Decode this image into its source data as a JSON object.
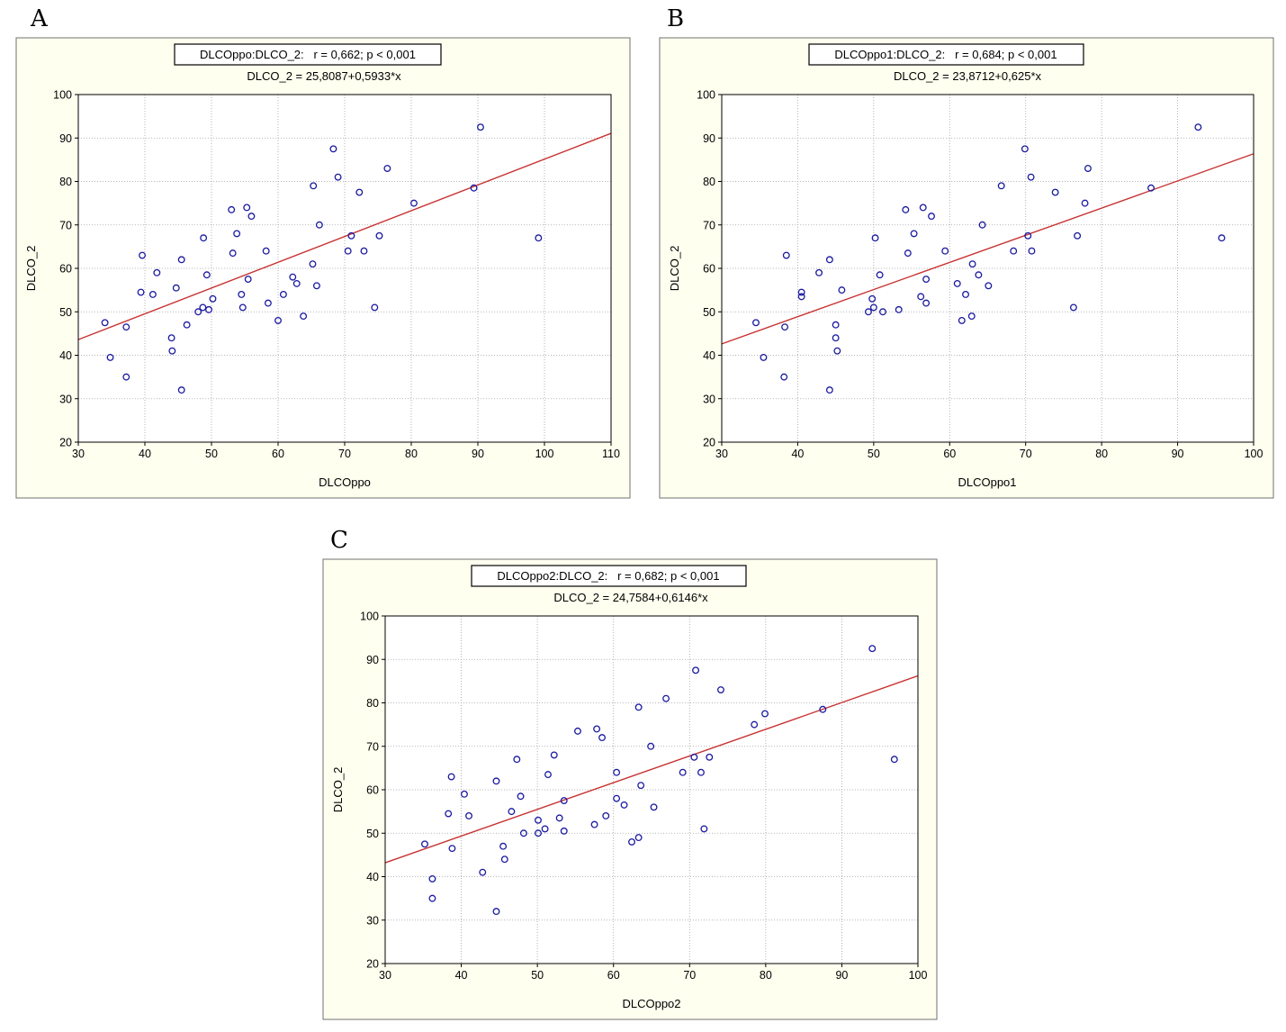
{
  "colors": {
    "panel_bg": "#ffffef",
    "point": "#1a1aa0",
    "fit_line": "#c83232",
    "grid": "#a0a0a0"
  },
  "chart_data": [
    {
      "type": "scatter",
      "panel_label": "A",
      "stat_box": "DLCOppo:DLCO_2:   r = 0,662; p < 0,001",
      "equation": "DLCO_2 = 25,8087+0,5933*x",
      "xlabel": "DLCOppo",
      "ylabel": "DLCO_2",
      "xlim": [
        30,
        110
      ],
      "ylim": [
        20,
        100
      ],
      "xticks": [
        30,
        40,
        50,
        60,
        70,
        80,
        90,
        100,
        110
      ],
      "yticks": [
        20,
        30,
        40,
        50,
        60,
        70,
        80,
        90,
        100
      ],
      "grid": true,
      "fit": {
        "intercept": 25.8087,
        "slope": 0.5933
      },
      "points": [
        [
          34,
          47.5
        ],
        [
          34.8,
          39.5
        ],
        [
          37.2,
          46.5
        ],
        [
          37.2,
          35
        ],
        [
          39.4,
          54.5
        ],
        [
          39.6,
          63
        ],
        [
          41.2,
          54
        ],
        [
          41.8,
          59
        ],
        [
          44,
          44
        ],
        [
          44.1,
          41
        ],
        [
          44.7,
          55.5
        ],
        [
          45.5,
          62
        ],
        [
          45.5,
          32
        ],
        [
          46.3,
          47
        ],
        [
          48,
          50
        ],
        [
          48.7,
          51
        ],
        [
          48.8,
          67
        ],
        [
          49.3,
          58.5
        ],
        [
          49.6,
          50.5
        ],
        [
          50.2,
          53
        ],
        [
          53,
          73.5
        ],
        [
          53.2,
          63.5
        ],
        [
          53.8,
          68
        ],
        [
          54.5,
          54
        ],
        [
          54.7,
          51
        ],
        [
          55.3,
          74
        ],
        [
          55.5,
          57.5
        ],
        [
          56,
          72
        ],
        [
          58.2,
          64
        ],
        [
          58.5,
          52
        ],
        [
          60,
          48
        ],
        [
          60.8,
          54
        ],
        [
          62.2,
          58
        ],
        [
          62.8,
          56.5
        ],
        [
          63.8,
          49
        ],
        [
          65.2,
          61
        ],
        [
          65.3,
          79
        ],
        [
          65.8,
          56
        ],
        [
          66.2,
          70
        ],
        [
          68.3,
          87.5
        ],
        [
          69,
          81
        ],
        [
          70.5,
          64
        ],
        [
          71,
          67.5
        ],
        [
          72.2,
          77.5
        ],
        [
          72.9,
          64
        ],
        [
          74.5,
          51
        ],
        [
          75.2,
          67.5
        ],
        [
          76.4,
          83
        ],
        [
          80.4,
          75
        ],
        [
          89.4,
          78.5
        ],
        [
          90.4,
          92.5
        ],
        [
          99.1,
          67
        ]
      ]
    },
    {
      "type": "scatter",
      "panel_label": "B",
      "stat_box": "DLCOppo1:DLCO_2:   r = 0,684; p < 0,001",
      "equation": "DLCO_2 = 23,8712+0,625*x",
      "xlabel": "DLCOppo1",
      "ylabel": "DLCO_2",
      "xlim": [
        30,
        100
      ],
      "ylim": [
        20,
        100
      ],
      "xticks": [
        30,
        40,
        50,
        60,
        70,
        80,
        90,
        100
      ],
      "yticks": [
        20,
        30,
        40,
        50,
        60,
        70,
        80,
        90,
        100
      ],
      "grid": true,
      "fit": {
        "intercept": 23.8712,
        "slope": 0.625
      },
      "points": [
        [
          34.5,
          47.5
        ],
        [
          35.5,
          39.5
        ],
        [
          38.2,
          35
        ],
        [
          38.3,
          46.5
        ],
        [
          38.5,
          63
        ],
        [
          40.5,
          54.5
        ],
        [
          40.5,
          53.5
        ],
        [
          42.8,
          59
        ],
        [
          44.2,
          62
        ],
        [
          44.2,
          32
        ],
        [
          45,
          47
        ],
        [
          45,
          44
        ],
        [
          45.2,
          41
        ],
        [
          45.8,
          55
        ],
        [
          49.3,
          50
        ],
        [
          49.8,
          53
        ],
        [
          50,
          51
        ],
        [
          50.2,
          67
        ],
        [
          50.8,
          58.5
        ],
        [
          51.2,
          50
        ],
        [
          53.3,
          50.5
        ],
        [
          54.2,
          73.5
        ],
        [
          54.5,
          63.5
        ],
        [
          55.3,
          68
        ],
        [
          56.2,
          53.5
        ],
        [
          56.5,
          74
        ],
        [
          56.9,
          57.5
        ],
        [
          56.9,
          52
        ],
        [
          57.6,
          72
        ],
        [
          59.4,
          64
        ],
        [
          61,
          56.5
        ],
        [
          61.6,
          48
        ],
        [
          62.1,
          54
        ],
        [
          62.9,
          49
        ],
        [
          63,
          61
        ],
        [
          63.8,
          58.5
        ],
        [
          64.3,
          70
        ],
        [
          65.1,
          56
        ],
        [
          66.8,
          79
        ],
        [
          68.4,
          64
        ],
        [
          69.9,
          87.5
        ],
        [
          70.3,
          67.5
        ],
        [
          70.7,
          81
        ],
        [
          70.8,
          64
        ],
        [
          73.9,
          77.5
        ],
        [
          76.3,
          51
        ],
        [
          76.8,
          67.5
        ],
        [
          77.8,
          75
        ],
        [
          78.2,
          83
        ],
        [
          86.5,
          78.5
        ],
        [
          92.7,
          92.5
        ],
        [
          95.8,
          67
        ]
      ]
    },
    {
      "type": "scatter",
      "panel_label": "C",
      "stat_box": "DLCOppo2:DLCO_2:   r = 0,682; p < 0,001",
      "equation": "DLCO_2 = 24,7584+0,6146*x",
      "xlabel": "DLCOppo2",
      "ylabel": "DLCO_2",
      "xlim": [
        30,
        100
      ],
      "ylim": [
        20,
        100
      ],
      "xticks": [
        30,
        40,
        50,
        60,
        70,
        80,
        90,
        100
      ],
      "yticks": [
        20,
        30,
        40,
        50,
        60,
        70,
        80,
        90,
        100
      ],
      "grid": true,
      "fit": {
        "intercept": 24.7584,
        "slope": 0.6146
      },
      "points": [
        [
          35.2,
          47.5
        ],
        [
          36.2,
          39.5
        ],
        [
          36.2,
          35
        ],
        [
          38.3,
          54.5
        ],
        [
          38.7,
          63
        ],
        [
          38.8,
          46.5
        ],
        [
          40.4,
          59
        ],
        [
          41,
          54
        ],
        [
          42.8,
          41
        ],
        [
          44.6,
          62
        ],
        [
          44.6,
          32
        ],
        [
          45.5,
          47
        ],
        [
          45.7,
          44
        ],
        [
          46.6,
          55
        ],
        [
          47.3,
          67
        ],
        [
          47.8,
          58.5
        ],
        [
          48.2,
          50
        ],
        [
          50.1,
          53
        ],
        [
          50.1,
          50
        ],
        [
          51,
          51
        ],
        [
          51.4,
          63.5
        ],
        [
          52.2,
          68
        ],
        [
          52.9,
          53.5
        ],
        [
          53.5,
          57.5
        ],
        [
          53.5,
          50.5
        ],
        [
          55.3,
          73.5
        ],
        [
          57.5,
          52
        ],
        [
          57.8,
          74
        ],
        [
          58.5,
          72
        ],
        [
          59,
          54
        ],
        [
          60.4,
          64
        ],
        [
          60.4,
          58
        ],
        [
          61.4,
          56.5
        ],
        [
          62.4,
          48
        ],
        [
          63.3,
          49
        ],
        [
          63.3,
          79
        ],
        [
          63.6,
          61
        ],
        [
          64.9,
          70
        ],
        [
          65.3,
          56
        ],
        [
          66.9,
          81
        ],
        [
          69.1,
          64
        ],
        [
          70.6,
          67.5
        ],
        [
          70.8,
          87.5
        ],
        [
          71.5,
          64
        ],
        [
          71.9,
          51
        ],
        [
          72.6,
          67.5
        ],
        [
          74.1,
          83
        ],
        [
          78.5,
          75
        ],
        [
          79.9,
          77.5
        ],
        [
          87.5,
          78.5
        ],
        [
          94,
          92.5
        ],
        [
          96.9,
          67
        ]
      ]
    }
  ]
}
